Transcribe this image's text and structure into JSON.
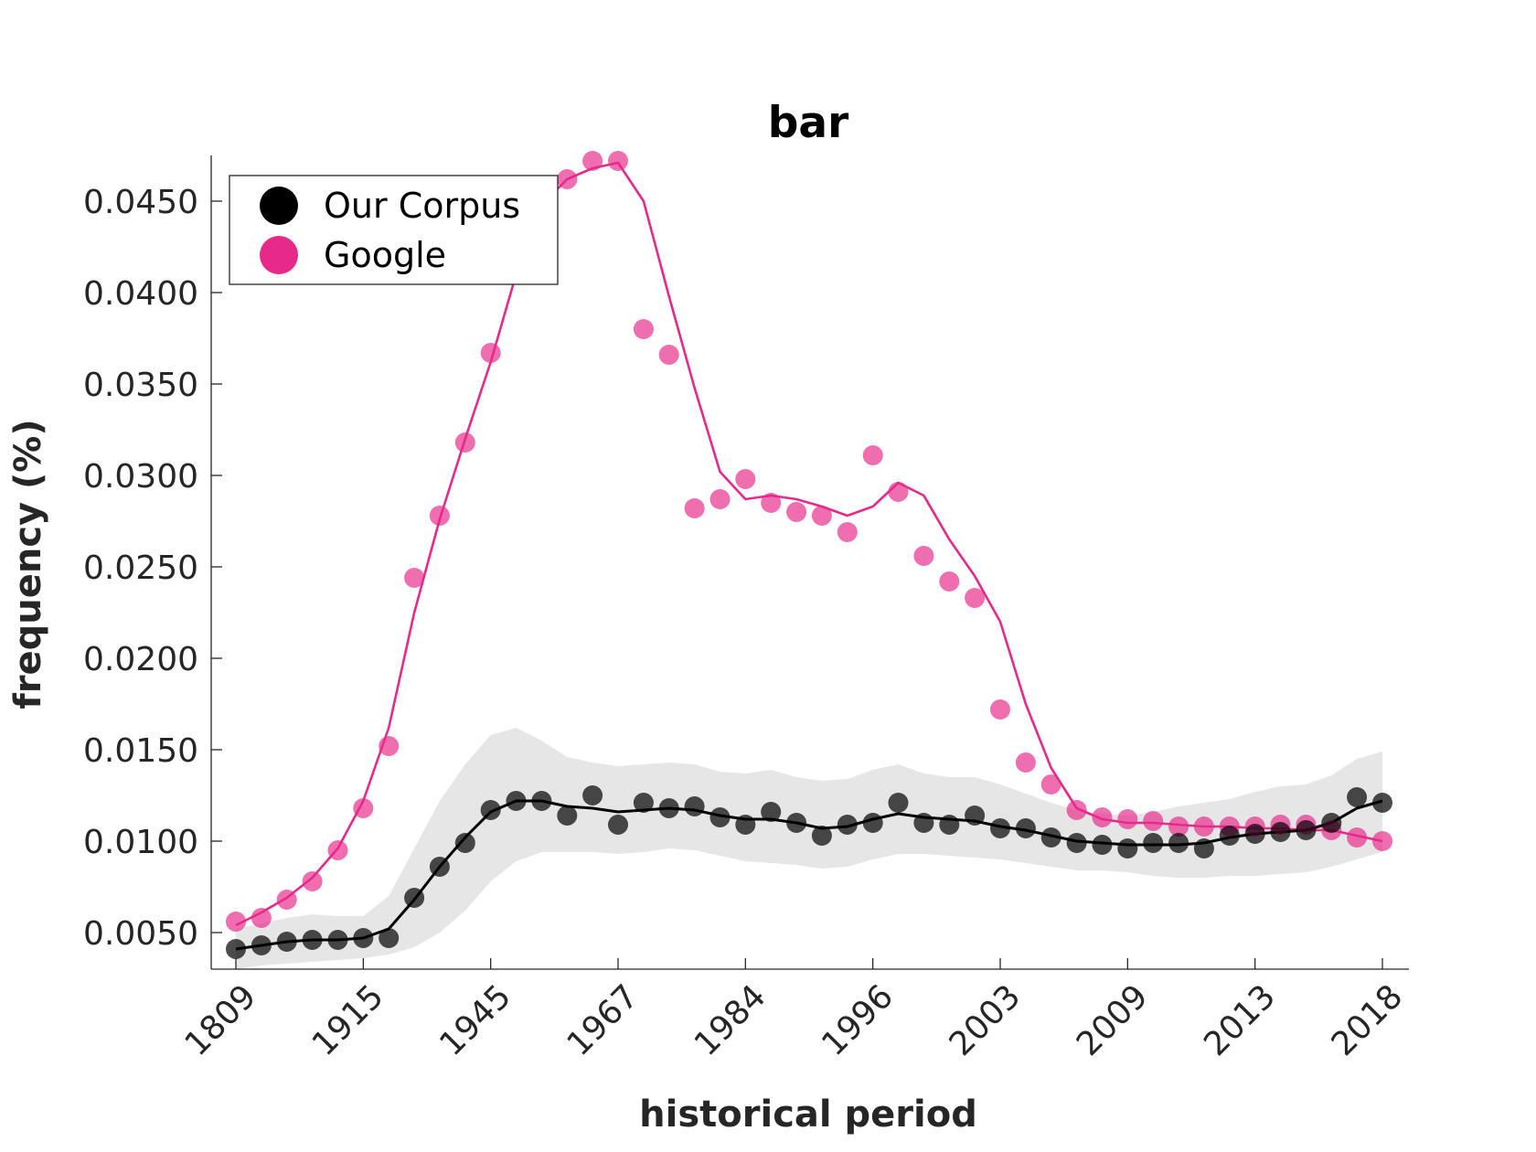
{
  "chart_data": {
    "type": "line",
    "title": "bar",
    "xlabel": "historical period",
    "ylabel": "frequency (%)",
    "ylim": [
      0.003,
      0.0475
    ],
    "yticks": [
      "0.0050",
      "0.0100",
      "0.0150",
      "0.0200",
      "0.0250",
      "0.0300",
      "0.0350",
      "0.0400",
      "0.0450"
    ],
    "ytick_values": [
      0.005,
      0.01,
      0.015,
      0.02,
      0.025,
      0.03,
      0.035,
      0.04,
      0.045
    ],
    "xticks": [
      "1809",
      "1915",
      "1945",
      "1967",
      "1984",
      "1996",
      "2003",
      "2009",
      "2013",
      "2018"
    ],
    "grid": false,
    "legend_position": "top-left",
    "series": [
      {
        "name": "Our Corpus",
        "color": "#000000",
        "points": [
          0.0041,
          0.0043,
          0.0045,
          0.0046,
          0.0046,
          0.0047,
          0.0047,
          0.0069,
          0.0086,
          0.0099,
          0.0117,
          0.0122,
          0.0122,
          0.0114,
          0.0125,
          0.0109,
          0.0121,
          0.0118,
          0.0119,
          0.0113,
          0.0109,
          0.0116,
          0.011,
          0.0103,
          0.0109,
          0.011,
          0.0121,
          0.011,
          0.0109,
          0.0114,
          0.0107,
          0.0107,
          0.0102,
          0.0099,
          0.0098,
          0.0096,
          0.0099,
          0.0099,
          0.0096,
          0.0103,
          0.0104,
          0.0105,
          0.0106,
          0.011,
          0.0124,
          0.0121
        ],
        "smoothed": [
          0.0041,
          0.0043,
          0.0045,
          0.0046,
          0.0046,
          0.0047,
          0.0052,
          0.0068,
          0.0086,
          0.0102,
          0.0116,
          0.0122,
          0.0122,
          0.0119,
          0.0118,
          0.0116,
          0.0117,
          0.0118,
          0.0117,
          0.0114,
          0.0112,
          0.0112,
          0.011,
          0.0107,
          0.0108,
          0.0112,
          0.0115,
          0.0113,
          0.0112,
          0.0111,
          0.0108,
          0.0106,
          0.0103,
          0.01,
          0.0099,
          0.0098,
          0.0098,
          0.0098,
          0.0099,
          0.0102,
          0.0104,
          0.0105,
          0.0106,
          0.011,
          0.0118,
          0.0122
        ],
        "band_lower": [
          0.003,
          0.0032,
          0.0033,
          0.0034,
          0.0035,
          0.0036,
          0.0038,
          0.0042,
          0.005,
          0.0062,
          0.0078,
          0.0089,
          0.0094,
          0.0094,
          0.0094,
          0.0093,
          0.0094,
          0.0096,
          0.0095,
          0.0092,
          0.0089,
          0.0088,
          0.0087,
          0.0085,
          0.0086,
          0.009,
          0.0093,
          0.0093,
          0.0092,
          0.0091,
          0.009,
          0.0088,
          0.0086,
          0.0084,
          0.0084,
          0.0083,
          0.0081,
          0.008,
          0.008,
          0.0081,
          0.0081,
          0.0082,
          0.0083,
          0.0086,
          0.009,
          0.0094
        ],
        "band_upper": [
          0.0052,
          0.0055,
          0.0058,
          0.006,
          0.0059,
          0.0059,
          0.007,
          0.0096,
          0.0122,
          0.0142,
          0.0158,
          0.0162,
          0.0155,
          0.0146,
          0.0143,
          0.0141,
          0.0142,
          0.0143,
          0.0142,
          0.0138,
          0.0137,
          0.0139,
          0.0135,
          0.0133,
          0.0134,
          0.0139,
          0.0142,
          0.0137,
          0.0135,
          0.0135,
          0.0131,
          0.0126,
          0.0121,
          0.0117,
          0.0115,
          0.0114,
          0.0116,
          0.0119,
          0.0121,
          0.0123,
          0.0127,
          0.013,
          0.0131,
          0.0136,
          0.0145,
          0.0149
        ]
      },
      {
        "name": "Google",
        "color": "#e7298a",
        "points": [
          0.0056,
          0.0058,
          0.0068,
          0.0078,
          0.0095,
          0.0118,
          0.0152,
          0.0244,
          0.0278,
          0.0318,
          0.0367,
          0.0418,
          0.0445,
          0.0462,
          0.0472,
          0.0472,
          0.038,
          0.0366,
          0.0282,
          0.0287,
          0.0298,
          0.0285,
          0.028,
          0.0278,
          0.0269,
          0.0311,
          0.0291,
          0.0256,
          0.0242,
          0.0233,
          0.0172,
          0.0143,
          0.0131,
          0.0117,
          0.0113,
          0.0112,
          0.0111,
          0.0108,
          0.0108,
          0.0108,
          0.0108,
          0.0109,
          0.0109,
          0.0106,
          0.0102,
          0.01
        ],
        "smoothed": [
          0.0054,
          0.0061,
          0.0069,
          0.008,
          0.0096,
          0.0122,
          0.0162,
          0.0225,
          0.0276,
          0.032,
          0.0362,
          0.041,
          0.0448,
          0.0462,
          0.0468,
          0.0471,
          0.045,
          0.0398,
          0.0348,
          0.0302,
          0.0287,
          0.0289,
          0.0287,
          0.0283,
          0.0278,
          0.0283,
          0.0296,
          0.0289,
          0.0265,
          0.0245,
          0.022,
          0.0175,
          0.014,
          0.0118,
          0.0112,
          0.011,
          0.011,
          0.0109,
          0.0108,
          0.0108,
          0.0107,
          0.0107,
          0.0106,
          0.0106,
          0.0103,
          0.01
        ]
      }
    ]
  }
}
